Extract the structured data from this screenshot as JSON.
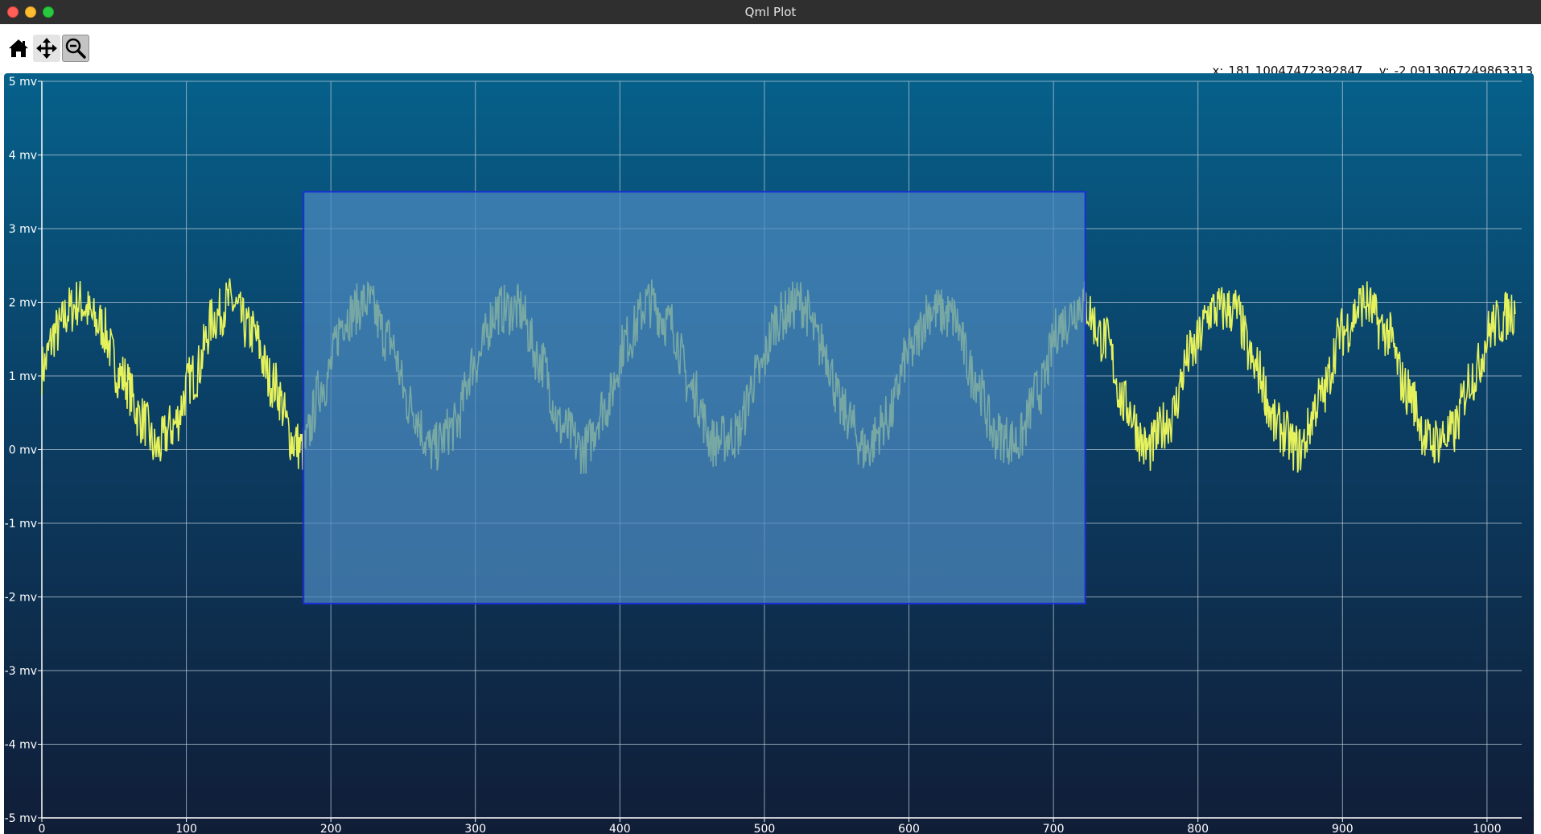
{
  "window": {
    "title": "Qml Plot"
  },
  "toolbar": {
    "buttons": [
      {
        "name": "home",
        "icon": "home-icon"
      },
      {
        "name": "pan",
        "icon": "move-arrows-icon"
      },
      {
        "name": "zoom",
        "icon": "zoom-out-magnifier-icon"
      }
    ]
  },
  "coords": {
    "x_label": "x:",
    "x_value": "181.10047472392847",
    "y_label": "y:",
    "y_value": "-2.0913067249863313"
  },
  "colors": {
    "signal": "#e6f25c",
    "grid": "#b8c8d4",
    "selection_fill": "#4c8ac0",
    "selection_border": "#1a2fd6",
    "bg_top": "#06618b",
    "bg_bottom": "#101d37"
  },
  "chart_data": {
    "type": "line",
    "title": "",
    "xlabel": "",
    "ylabel": "",
    "xlim": [
      0,
      1024
    ],
    "ylim": [
      -5,
      5
    ],
    "x_ticks": [
      "0",
      "100",
      "200",
      "300",
      "400",
      "500",
      "600",
      "700",
      "800",
      "900",
      "1000"
    ],
    "y_ticks": [
      "5 mv",
      "4 mv",
      "3 mv",
      "2 mv",
      "1 mv",
      "0 mv",
      "-1 mv",
      "-2 mv",
      "-3 mv",
      "-4 mv",
      "-5 mv"
    ],
    "grid": true,
    "series": [
      {
        "x": [
          0,
          10,
          20,
          25,
          40,
          55,
          70,
          79,
          90,
          105,
          120,
          130,
          145,
          160,
          175,
          180,
          195,
          210,
          225,
          240,
          255,
          270,
          285,
          300,
          315,
          330,
          345,
          360,
          375,
          390,
          405,
          420,
          435,
          450,
          465,
          480,
          495,
          510,
          525,
          540,
          555,
          570,
          585,
          600,
          615,
          630,
          645,
          660,
          675,
          690,
          705,
          720,
          735,
          750,
          765,
          780,
          795,
          810,
          825,
          840,
          855,
          870,
          885,
          900,
          915,
          930,
          945,
          960,
          975,
          990,
          1005,
          1020
        ],
        "y": [
          1.1,
          1.6,
          1.9,
          2.0,
          1.7,
          1.0,
          0.4,
          0.0,
          0.3,
          1.0,
          1.8,
          2.0,
          1.6,
          0.9,
          0.1,
          0.0,
          0.9,
          1.8,
          2.0,
          1.5,
          0.6,
          0.0,
          0.3,
          1.2,
          1.9,
          1.9,
          1.2,
          0.3,
          0.0,
          0.6,
          1.5,
          2.0,
          1.7,
          0.8,
          0.1,
          0.2,
          1.0,
          1.8,
          2.0,
          1.4,
          0.5,
          0.0,
          0.4,
          1.3,
          1.9,
          1.8,
          1.0,
          0.2,
          0.1,
          0.8,
          1.7,
          2.0,
          1.5,
          0.6,
          0.0,
          0.4,
          1.3,
          1.9,
          1.9,
          1.1,
          0.3,
          0.0,
          0.7,
          1.6,
          2.0,
          1.6,
          0.8,
          0.1,
          0.2,
          1.0,
          1.7,
          1.9
        ]
      }
    ],
    "selection": {
      "x0": 181.1,
      "x1": 722.0,
      "y0": -2.09,
      "y1": 3.5
    }
  }
}
